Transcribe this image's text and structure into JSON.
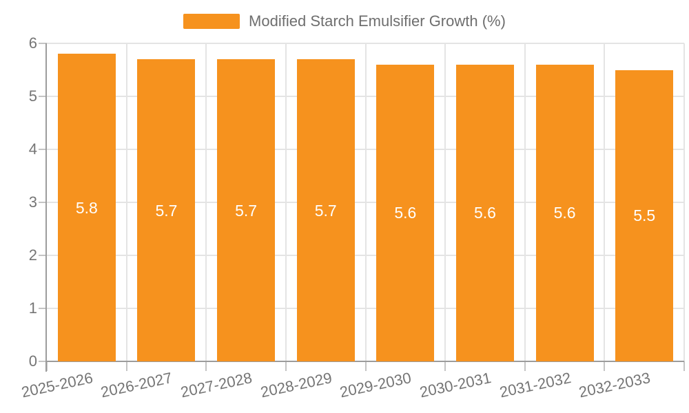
{
  "legend": {
    "label": "Modified Starch Emulsifier Growth (%)"
  },
  "chart_data": {
    "type": "bar",
    "title": "Modified Starch Emulsifier Growth (%)",
    "series_name": "Modified Starch Emulsifier Growth (%)",
    "categories": [
      "2025-2026",
      "2026-2027",
      "2027-2028",
      "2028-2029",
      "2029-2030",
      "2030-2031",
      "2031-2032",
      "2032-2033"
    ],
    "values": [
      5.8,
      5.7,
      5.7,
      5.7,
      5.6,
      5.6,
      5.6,
      5.5
    ],
    "value_labels": [
      "5.8",
      "5.7",
      "5.7",
      "5.7",
      "5.6",
      "5.6",
      "5.6",
      "5.5"
    ],
    "xlabel": "",
    "ylabel": "",
    "ylim": [
      0,
      6
    ],
    "y_ticks": [
      0,
      1,
      2,
      3,
      4,
      5,
      6
    ],
    "grid": true,
    "legend_position": "top-center",
    "bar_label_position": "inside-center",
    "bar_color": "#f6921e",
    "bar_label_color": "#ffffff",
    "axis_text_color": "#757575",
    "legend_text_color": "#6e6e6e",
    "gridline_color": "#e4e4e4",
    "axis_line_color": "#9c9c9c",
    "tick_color": "#c4c4c4",
    "background_color": "#ffffff"
  }
}
